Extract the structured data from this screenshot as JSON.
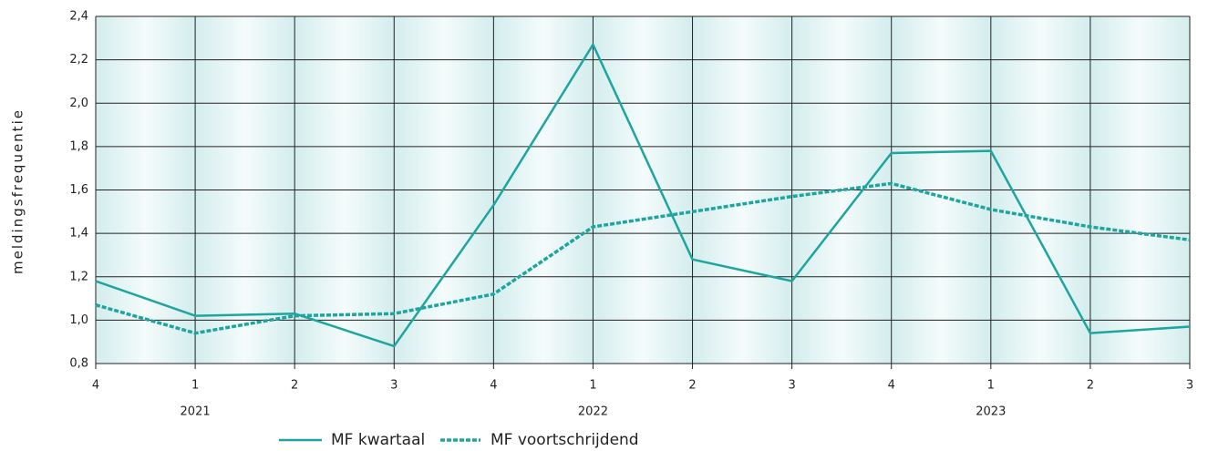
{
  "chart_data": {
    "type": "line",
    "y_label": "meldingsfrequentie",
    "categories": [
      "4",
      "1",
      "2",
      "3",
      "4",
      "1",
      "2",
      "3",
      "4",
      "1",
      "2",
      "3"
    ],
    "year_labels": [
      null,
      "2021",
      null,
      null,
      null,
      "2022",
      null,
      null,
      null,
      "2023",
      null,
      null
    ],
    "series": [
      {
        "name": "MF kwartaal",
        "color": "#1ea5a0",
        "style": "solid",
        "values": [
          1.18,
          1.02,
          1.03,
          0.88,
          1.53,
          2.27,
          1.28,
          1.18,
          1.77,
          1.78,
          0.94,
          0.97
        ]
      },
      {
        "name": "MF voortschrijdend",
        "color": "#1ea5a0",
        "style": "dashed",
        "values": [
          1.07,
          0.94,
          1.02,
          1.03,
          1.12,
          1.43,
          1.5,
          1.57,
          1.63,
          1.51,
          1.43,
          1.37
        ]
      }
    ],
    "ylim": [
      0.8,
      2.4
    ],
    "yticks": [
      {
        "value": 0.8,
        "label": "0,8"
      },
      {
        "value": 1.0,
        "label": "1,0"
      },
      {
        "value": 1.2,
        "label": "1,2"
      },
      {
        "value": 1.4,
        "label": "1,4"
      },
      {
        "value": 1.6,
        "label": "1,6"
      },
      {
        "value": 1.8,
        "label": "1,8"
      },
      {
        "value": 2.0,
        "label": "2,0"
      },
      {
        "value": 2.2,
        "label": "2,2"
      },
      {
        "value": 2.4,
        "label": "2,4"
      }
    ],
    "grid": true
  }
}
